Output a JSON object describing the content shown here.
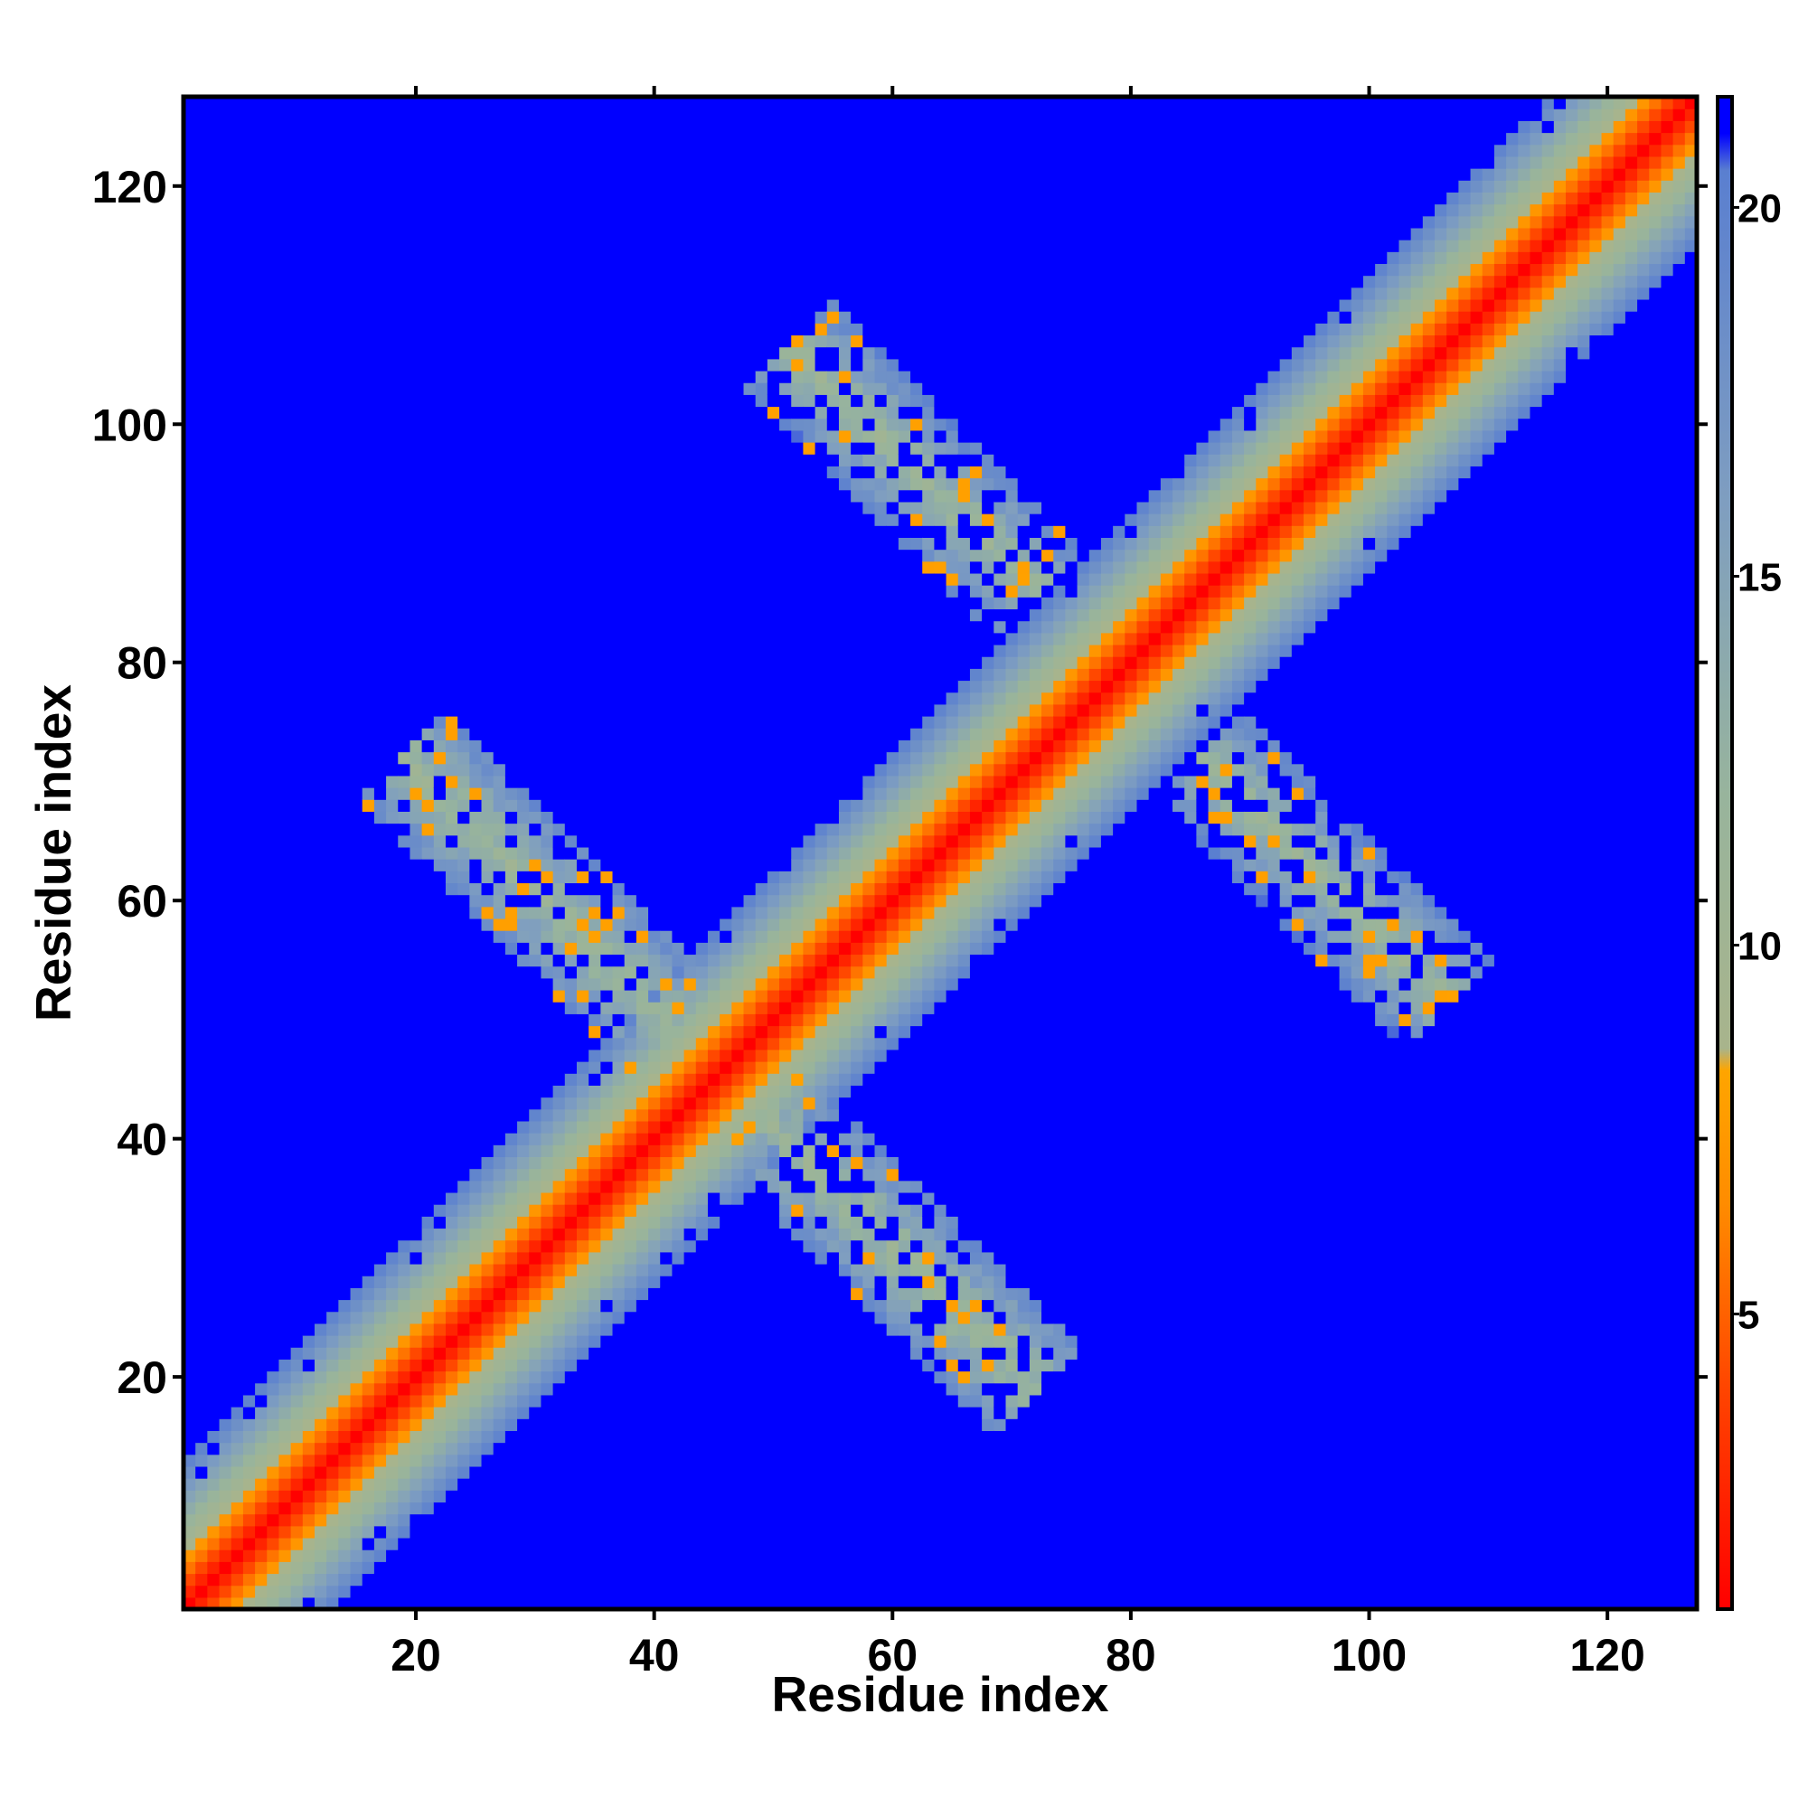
{
  "chart_data": {
    "type": "heatmap",
    "title": "",
    "xlabel": "Residue index",
    "ylabel": "Residue index",
    "n_residues": 127,
    "xlim": [
      0.5,
      127.5
    ],
    "ylim": [
      0.5,
      127.5
    ],
    "x_ticks": [
      20,
      40,
      60,
      80,
      100,
      120
    ],
    "y_ticks": [
      20,
      40,
      60,
      80,
      100,
      120
    ],
    "colorbar": {
      "range": [
        1,
        21.5
      ],
      "ticks": [
        5,
        10,
        15,
        20
      ],
      "stops": [
        {
          "value": 1,
          "color": "#ff0000"
        },
        {
          "value": 4,
          "color": "#ff4500"
        },
        {
          "value": 6.5,
          "color": "#ff8c00"
        },
        {
          "value": 8.3,
          "color": "#ffa500"
        },
        {
          "value": 8.6,
          "color": "#a8b48c"
        },
        {
          "value": 12,
          "color": "#98b49c"
        },
        {
          "value": 16,
          "color": "#7f9ec0"
        },
        {
          "value": 20.5,
          "color": "#5a7fd0"
        },
        {
          "value": 21,
          "color": "#0000ff"
        },
        {
          "value": 21.5,
          "color": "#0000ff"
        }
      ]
    },
    "background_value": 21.5,
    "diagonal_band": {
      "center_value": 1.0,
      "distance_scale": 1.55,
      "max_offset": 13
    },
    "contact_regions": [
      {
        "name": "",
        "center": [
          53,
          38
        ],
        "direction": [
          1,
          -1
        ],
        "length": 45,
        "half_width": 5.5
      },
      {
        "name": "",
        "center": [
          38,
          53
        ],
        "direction": [
          -1,
          1
        ],
        "length": 45,
        "half_width": 5.5
      },
      {
        "name": "",
        "center": [
          90,
          68
        ],
        "direction": [
          1,
          -1
        ],
        "length": 40,
        "half_width": 5
      },
      {
        "name": "",
        "center": [
          68,
          90
        ],
        "direction": [
          -1,
          1
        ],
        "length": 40,
        "half_width": 5
      }
    ],
    "grid": false,
    "legend": "colorbar-right"
  }
}
